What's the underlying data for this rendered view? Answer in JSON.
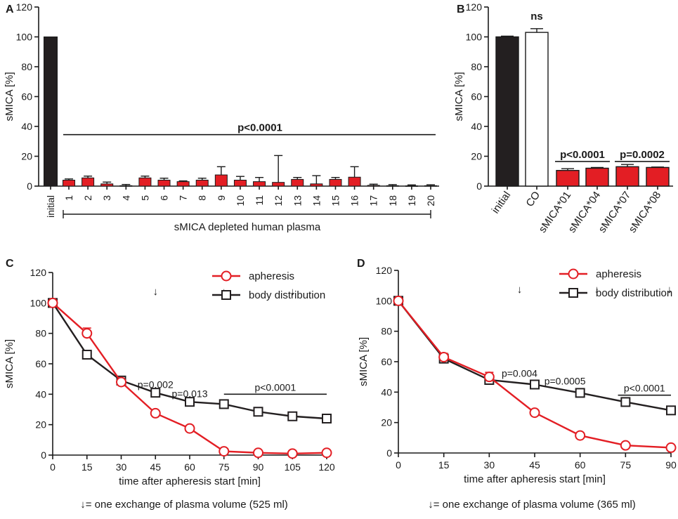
{
  "colors": {
    "red": "#e31e24",
    "dark": "#231f20",
    "white": "#ffffff",
    "black": "#1a1a1a"
  },
  "chart_data": [
    {
      "panel": "A",
      "type": "bar",
      "ylabel": "sMICA [%]",
      "ylim": [
        0,
        120
      ],
      "yticks": [
        "0",
        "20",
        "40",
        "60",
        "80",
        "100",
        "120"
      ],
      "categories": [
        "initial",
        "1",
        "2",
        "3",
        "4",
        "5",
        "6",
        "7",
        "8",
        "9",
        "10",
        "11",
        "12",
        "13",
        "14",
        "15",
        "16",
        "17",
        "18",
        "19",
        "20"
      ],
      "values": [
        100,
        4,
        5.5,
        1.5,
        0.3,
        5.5,
        4,
        3,
        4,
        7.5,
        4,
        3,
        2.5,
        4.5,
        1.5,
        4.5,
        6,
        0.5,
        0.3,
        0.2,
        0.3
      ],
      "errors": [
        0,
        0.8,
        1.2,
        1.2,
        0.8,
        1.2,
        1.3,
        0.5,
        1.3,
        5.5,
        2.5,
        2.8,
        18,
        1.3,
        5.5,
        1.3,
        7,
        0.8,
        0.7,
        0.6,
        0.6
      ],
      "colors": [
        "dark",
        "red",
        "red",
        "red",
        "red",
        "red",
        "red",
        "red",
        "red",
        "red",
        "red",
        "red",
        "red",
        "red",
        "red",
        "red",
        "red",
        "red",
        "red",
        "red",
        "red"
      ],
      "annotation": "p<0.0001",
      "annotation_level": 34.5,
      "group_label": "sMICA depleted human plasma"
    },
    {
      "panel": "B",
      "type": "bar",
      "ylabel": "sMICA [%]",
      "ylim": [
        0,
        120
      ],
      "yticks": [
        "0",
        "20",
        "40",
        "60",
        "80",
        "100",
        "120"
      ],
      "categories": [
        "initial",
        "CO",
        "sMICA*01",
        "sMICA*04",
        "sMICA*07",
        "sMICA*08"
      ],
      "values": [
        100,
        103,
        10.5,
        12,
        13,
        12.5
      ],
      "errors": [
        0.5,
        2.5,
        1.2,
        0.5,
        1.5,
        0.3
      ],
      "colors": [
        "dark",
        "white",
        "red",
        "red",
        "red",
        "red"
      ],
      "annotations": [
        {
          "text": "ns",
          "level": 108
        },
        {
          "text": "p<0.0001",
          "level": 16.5
        },
        {
          "text": "p=0.0002",
          "level": 16.5
        }
      ]
    },
    {
      "panel": "C",
      "type": "line",
      "xlabel": "time after apheresis start [min]",
      "ylabel": "sMICA [%]",
      "xlim": [
        0,
        120
      ],
      "ylim": [
        0,
        120
      ],
      "xticks": [
        "0",
        "15",
        "30",
        "45",
        "60",
        "75",
        "90",
        "105",
        "120"
      ],
      "yticks": [
        "0",
        "20",
        "40",
        "60",
        "80",
        "100",
        "120"
      ],
      "series": [
        {
          "name": "apheresis",
          "color": "red",
          "marker": "circle",
          "x": [
            0,
            15,
            30,
            45,
            60,
            75,
            90,
            105,
            120
          ],
          "y": [
            100,
            80,
            48,
            27.5,
            17.5,
            2.5,
            1.5,
            1,
            1.5
          ],
          "err": [
            0,
            3.5,
            1.5,
            0,
            0,
            0,
            0,
            0,
            0
          ]
        },
        {
          "name": "body distribution",
          "color": "dark",
          "marker": "square",
          "x": [
            0,
            15,
            30,
            45,
            60,
            75,
            90,
            105,
            120
          ],
          "y": [
            100,
            66,
            49,
            41,
            35,
            33.5,
            28.5,
            25.5,
            24
          ],
          "err": [
            0,
            0,
            0,
            0,
            0,
            0,
            0,
            0,
            0
          ]
        }
      ],
      "arrow_label": "↓",
      "arrow_x": [
        45,
        75,
        105
      ],
      "arrow_y": 108,
      "pvalues": [
        {
          "text": "p=0.002",
          "x": 45,
          "y": 44
        },
        {
          "text": "p=0.013",
          "x": 60,
          "y": 38
        }
      ],
      "bracket": {
        "text": "p<0.0001",
        "x_start": 75,
        "x_end": 120,
        "y": 40
      },
      "footnote": "↓= one exchange of  plasma volume (525 ml)"
    },
    {
      "panel": "D",
      "type": "line",
      "xlabel": "time after apheresis start [min]",
      "ylabel": "sMICA [%]",
      "xlim": [
        0,
        90
      ],
      "ylim": [
        0,
        120
      ],
      "xticks": [
        "0",
        "15",
        "30",
        "45",
        "60",
        "75",
        "90"
      ],
      "yticks": [
        "0",
        "20",
        "40",
        "60",
        "80",
        "100",
        "120"
      ],
      "series": [
        {
          "name": "apheresis",
          "color": "red",
          "marker": "circle",
          "x": [
            0,
            15,
            30,
            45,
            60,
            75,
            90
          ],
          "y": [
            100,
            63,
            50,
            26.5,
            11.5,
            5,
            3.5
          ],
          "err": [
            0,
            2.5,
            3,
            0,
            0,
            0,
            0
          ]
        },
        {
          "name": "body distribution",
          "color": "dark",
          "marker": "square",
          "x": [
            0,
            15,
            30,
            45,
            60,
            75,
            90
          ],
          "y": [
            100,
            62,
            48,
            45,
            39.5,
            33.5,
            28
          ],
          "err": [
            0,
            0,
            0,
            0,
            0,
            0,
            0
          ]
        }
      ],
      "arrow_label": "↓",
      "arrow_x": [
        40,
        65.5,
        89.5
      ],
      "arrow_y": 108,
      "pvalues": [
        {
          "text": "p=0.004",
          "x": 40,
          "y": 50
        },
        {
          "text": "p=0.0005",
          "x": 55,
          "y": 45
        }
      ],
      "bracket": {
        "text": "p<0.0001",
        "x_start": 72.5,
        "x_end": 90,
        "y": 38
      },
      "footnote": "↓= one exchange of  plasma volume (365 ml)"
    }
  ]
}
